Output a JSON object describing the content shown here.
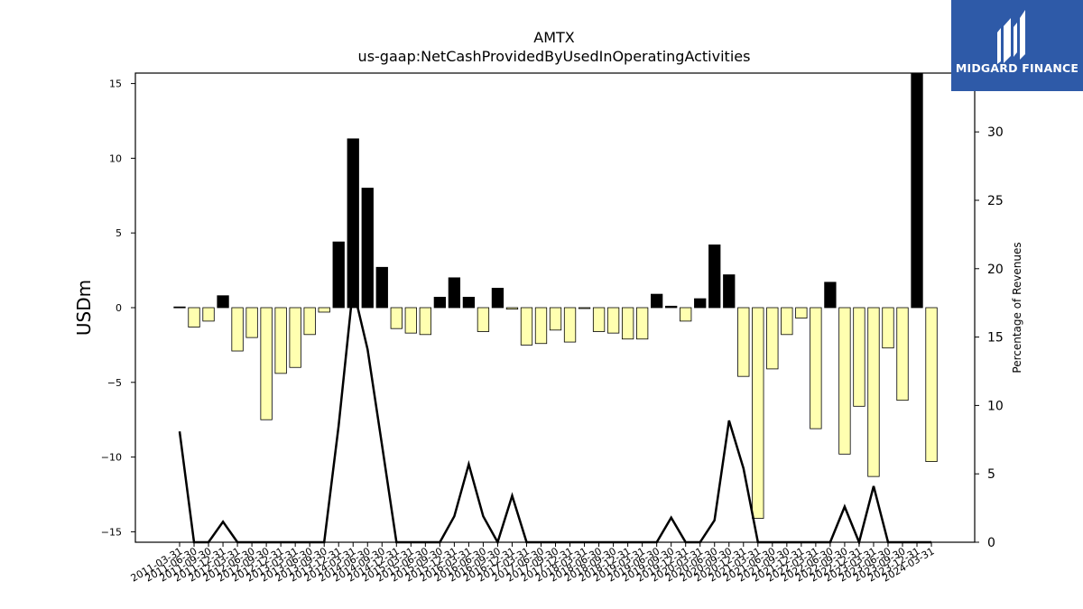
{
  "title": "AMTX",
  "subtitle": "us-gaap:NetCashProvidedByUsedInOperatingActivities",
  "logo_text": "MIDGARD FINANCE",
  "colors": {
    "positive_bar": "#000000",
    "negative_bar": "#ffffb0",
    "line": "#000000",
    "logo_bg": "#2e5aa8"
  },
  "chart_data": {
    "type": "bar",
    "categories": [
      "2011-03-31",
      "2011-06-30",
      "2011-09-30",
      "2011-12-31",
      "2012-03-31",
      "2012-06-30",
      "2012-09-30",
      "2012-12-31",
      "2013-03-31",
      "2013-06-30",
      "2013-09-30",
      "2013-12-31",
      "2014-03-31",
      "2014-06-30",
      "2014-09-30",
      "2014-12-31",
      "2015-03-31",
      "2015-06-30",
      "2015-09-30",
      "2015-12-31",
      "2016-03-31",
      "2016-06-30",
      "2016-09-30",
      "2016-12-31",
      "2017-03-31",
      "2017-06-30",
      "2017-09-30",
      "2017-12-31",
      "2018-03-31",
      "2018-06-30",
      "2018-09-30",
      "2018-12-31",
      "2019-03-31",
      "2019-06-30",
      "2019-09-30",
      "2019-12-31",
      "2020-03-31",
      "2020-06-30",
      "2020-09-30",
      "2020-12-31",
      "2021-03-31",
      "2021-06-30",
      "2021-09-30",
      "2021-12-31",
      "2022-03-31",
      "2022-06-30",
      "2022-09-30",
      "2022-12-31",
      "2023-03-31",
      "2023-06-30",
      "2023-09-30",
      "2023-12-31",
      "2024-03-31"
    ],
    "series": [
      {
        "values": [
          0.05,
          -1.3,
          -0.9,
          0.8,
          -2.9,
          -2.0,
          -7.5,
          -4.4,
          -4.0,
          -1.8,
          -0.3,
          4.4,
          11.3,
          8.0,
          2.7,
          -1.4,
          -1.7,
          -1.8,
          0.7,
          2.0,
          0.7,
          -1.6,
          1.3,
          -0.1,
          -2.5,
          -2.4,
          -1.5,
          -2.3,
          -0.05,
          -1.6,
          -1.7,
          -2.1,
          -2.1,
          0.9,
          0.1,
          -0.9,
          0.6,
          4.2,
          2.2,
          -4.6,
          -14.1,
          -4.1,
          -1.8,
          -0.7,
          -8.1,
          1.7,
          -9.8,
          -6.6,
          -11.3,
          -2.7,
          -6.2,
          15.8,
          -10.3
        ]
      },
      {
        "axis": "right",
        "values": [
          8.1,
          0,
          0,
          1.5,
          0,
          0,
          0,
          0,
          0,
          0,
          0,
          8.5,
          18.6,
          14.1,
          7.1,
          0,
          0,
          0,
          0,
          1.9,
          5.7,
          1.9,
          0,
          3.4,
          0,
          0,
          0,
          0,
          0,
          0,
          0,
          0,
          0,
          0,
          1.8,
          0,
          0,
          1.6,
          8.9,
          5.4,
          0,
          0,
          0,
          0,
          0,
          0,
          2.6,
          0,
          4.1,
          0,
          0,
          0,
          0
        ]
      }
    ],
    "ylabel": "USDm",
    "y2label": "Percentage of Revenues",
    "ylim": [
      -15.7,
      15.7
    ],
    "y2lim": [
      0,
      34.3
    ],
    "yticks": [
      -15,
      -10,
      -5,
      0,
      5,
      10,
      15
    ],
    "y2ticks": [
      0,
      5,
      10,
      15,
      20,
      25,
      30
    ],
    "ytick_labels": [
      "−15",
      "−10",
      "−5",
      "0",
      "5",
      "10",
      "15"
    ],
    "y2tick_labels": [
      "0",
      "5",
      "10",
      "15",
      "20",
      "25",
      "30"
    ],
    "grid": false
  }
}
